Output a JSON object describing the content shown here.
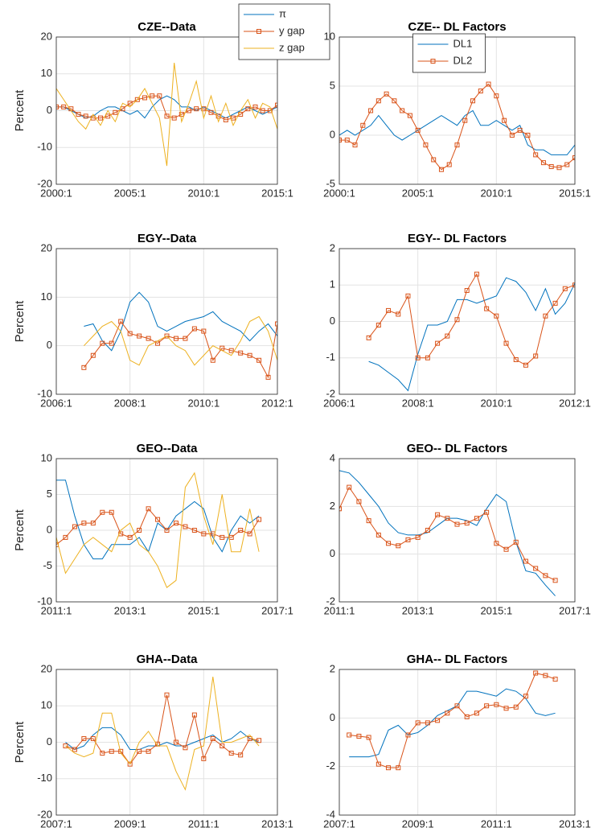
{
  "chart_data": [
    {
      "type": "line",
      "title": "CZE--Data",
      "ylabel": "Percent",
      "x": [
        2000,
        2000.5,
        2001,
        2001.5,
        2002,
        2002.5,
        2003,
        2003.5,
        2004,
        2004.5,
        2005,
        2005.5,
        2006,
        2006.5,
        2007,
        2007.5,
        2008,
        2008.5,
        2009,
        2009.5,
        2010,
        2010.5,
        2011,
        2011.5,
        2012,
        2012.5,
        2013,
        2013.5,
        2014,
        2014.5,
        2015
      ],
      "series": [
        {
          "name": "π",
          "color": "#0072bd",
          "values": [
            1,
            1,
            0,
            -1,
            -2,
            -1.5,
            0,
            1,
            1,
            0,
            -1,
            0,
            -2,
            1,
            3,
            4,
            3,
            1,
            1,
            0,
            1,
            0,
            -1,
            -2,
            -1,
            0,
            1,
            0,
            -1,
            0,
            1
          ]
        },
        {
          "name": "y gap",
          "color": "#d95319",
          "marker": "square",
          "values": [
            1,
            1,
            0.5,
            -1,
            -1.5,
            -2,
            -2,
            -1.5,
            -0.5,
            0.5,
            2,
            3,
            3.5,
            4,
            4,
            -1.5,
            -2,
            -1,
            0,
            0.5,
            0.5,
            -0.5,
            -1.5,
            -2.5,
            -2,
            -1,
            0.5,
            1,
            0,
            0,
            1.5
          ]
        },
        {
          "name": "z gap",
          "color": "#edb120",
          "values": [
            6,
            3,
            0,
            -3,
            -5,
            -1,
            -4,
            0,
            -3,
            2,
            1,
            3,
            6,
            2,
            -2,
            -15,
            13,
            -3,
            2,
            8,
            -2,
            4,
            -3,
            2,
            -4,
            0,
            3,
            -2,
            2,
            1,
            -5
          ]
        }
      ],
      "xlim": [
        2000,
        2015
      ],
      "xticks": [
        {
          "value": 2000,
          "label": "2000:1"
        },
        {
          "value": 2005,
          "label": "2005:1"
        },
        {
          "value": 2010,
          "label": "2010:1"
        },
        {
          "value": 2015,
          "label": "2015:1"
        }
      ],
      "ylim": [
        -20,
        20
      ],
      "yticks": [
        -20,
        -10,
        0,
        10,
        20
      ],
      "grid": true,
      "legend": "northeast"
    },
    {
      "type": "line",
      "title": "CZE-- DL Factors",
      "x": [
        2000,
        2000.5,
        2001,
        2001.5,
        2002,
        2002.5,
        2003,
        2003.5,
        2004,
        2004.5,
        2005,
        2005.5,
        2006,
        2006.5,
        2007,
        2007.5,
        2008,
        2008.5,
        2009,
        2009.5,
        2010,
        2010.5,
        2011,
        2011.5,
        2012,
        2012.5,
        2013,
        2013.5,
        2014,
        2014.5,
        2015
      ],
      "series": [
        {
          "name": "DL1",
          "color": "#0072bd",
          "values": [
            0,
            0.5,
            0,
            0.5,
            1,
            2,
            1,
            0,
            -0.5,
            0,
            0.5,
            1,
            1.5,
            2,
            1.5,
            1,
            2,
            2.5,
            1,
            1,
            1.5,
            1,
            0.5,
            1,
            -1,
            -1.5,
            -1.5,
            -2,
            -2,
            -2,
            -1
          ]
        },
        {
          "name": "DL2",
          "color": "#d95319",
          "marker": "square",
          "values": [
            -0.5,
            -0.5,
            -1,
            1,
            2.5,
            3.5,
            4.2,
            3.5,
            2.5,
            2,
            0.5,
            -1,
            -2.5,
            -3.5,
            -3,
            -1,
            1.5,
            3.5,
            4.5,
            5.2,
            4,
            1.5,
            0,
            0.5,
            0,
            -2,
            -2.8,
            -3.2,
            -3.3,
            -3,
            -2.3
          ]
        }
      ],
      "xlim": [
        2000,
        2015
      ],
      "xticks": [
        {
          "value": 2000,
          "label": "2000:1"
        },
        {
          "value": 2005,
          "label": "2005:1"
        },
        {
          "value": 2010,
          "label": "2010:1"
        },
        {
          "value": 2015,
          "label": "2015:1"
        }
      ],
      "ylim": [
        -5,
        10
      ],
      "yticks": [
        -5,
        0,
        5,
        10
      ],
      "grid": true,
      "legend": "north"
    },
    {
      "type": "line",
      "title": "EGY--Data",
      "ylabel": "Percent",
      "x": [
        2006.75,
        2007,
        2007.25,
        2007.5,
        2007.75,
        2008,
        2008.25,
        2008.5,
        2008.75,
        2009,
        2009.25,
        2009.5,
        2009.75,
        2010,
        2010.25,
        2010.5,
        2010.75,
        2011,
        2011.25,
        2011.5,
        2011.75,
        2012
      ],
      "series": [
        {
          "color": "#0072bd",
          "values": [
            4,
            4.5,
            1,
            -1,
            3,
            9,
            11,
            9,
            4,
            3,
            4,
            5,
            5.5,
            6,
            7,
            5,
            4,
            3,
            1,
            3,
            4.5,
            2
          ]
        },
        {
          "color": "#d95319",
          "marker": "square",
          "values": [
            -4.5,
            -2,
            0.5,
            0.5,
            5,
            2.5,
            2,
            1.5,
            0.5,
            2,
            1.5,
            1.5,
            3.5,
            3,
            -3,
            -0.5,
            -1,
            -1.5,
            -2,
            -3,
            -6.5,
            4.5
          ]
        },
        {
          "color": "#edb120",
          "values": [
            0,
            2,
            4,
            5,
            3,
            -3,
            -4,
            0,
            1,
            2,
            0,
            -1,
            -4,
            -2,
            0,
            -1,
            -2,
            1,
            5,
            6,
            3,
            -3
          ]
        }
      ],
      "xlim": [
        2006,
        2012
      ],
      "xticks": [
        {
          "value": 2006,
          "label": "2006:1"
        },
        {
          "value": 2008,
          "label": "2008:1"
        },
        {
          "value": 2010,
          "label": "2010:1"
        },
        {
          "value": 2012,
          "label": "2012:1"
        }
      ],
      "ylim": [
        -10,
        20
      ],
      "yticks": [
        -10,
        0,
        10,
        20
      ],
      "grid": true
    },
    {
      "type": "line",
      "title": "EGY-- DL Factors",
      "x": [
        2006.75,
        2007,
        2007.25,
        2007.5,
        2007.75,
        2008,
        2008.25,
        2008.5,
        2008.75,
        2009,
        2009.25,
        2009.5,
        2009.75,
        2010,
        2010.25,
        2010.5,
        2010.75,
        2011,
        2011.25,
        2011.5,
        2011.75,
        2012
      ],
      "series": [
        {
          "color": "#0072bd",
          "values": [
            -1.1,
            -1.2,
            -1.4,
            -1.6,
            -1.9,
            -0.9,
            -0.1,
            -0.1,
            0,
            0.6,
            0.6,
            0.5,
            0.6,
            0.7,
            1.2,
            1.1,
            0.8,
            0.3,
            0.9,
            0.2,
            0.5,
            1.05
          ]
        },
        {
          "color": "#d95319",
          "marker": "square",
          "values": [
            -0.45,
            -0.1,
            0.3,
            0.2,
            0.7,
            -1,
            -1,
            -0.6,
            -0.4,
            0.05,
            0.85,
            1.3,
            0.35,
            0.15,
            -0.6,
            -1.05,
            -1.2,
            -0.95,
            0.15,
            0.5,
            0.9,
            1.0
          ]
        }
      ],
      "xlim": [
        2006,
        2012
      ],
      "xticks": [
        {
          "value": 2006,
          "label": "2006:1"
        },
        {
          "value": 2008,
          "label": "2008:1"
        },
        {
          "value": 2010,
          "label": "2010:1"
        },
        {
          "value": 2012,
          "label": "2012:1"
        }
      ],
      "ylim": [
        -2,
        2
      ],
      "yticks": [
        -2,
        -1,
        0,
        1,
        2
      ],
      "grid": true
    },
    {
      "type": "line",
      "title": "GEO--Data",
      "ylabel": "Percent",
      "x": [
        2011,
        2011.25,
        2011.5,
        2011.75,
        2012,
        2012.25,
        2012.5,
        2012.75,
        2013,
        2013.25,
        2013.5,
        2013.75,
        2014,
        2014.25,
        2014.5,
        2014.75,
        2015,
        2015.25,
        2015.5,
        2015.75,
        2016,
        2016.25,
        2016.5
      ],
      "series": [
        {
          "color": "#0072bd",
          "values": [
            7,
            7,
            2,
            -2,
            -4,
            -4,
            -2,
            -2,
            -2,
            -1,
            -3,
            1,
            0,
            2,
            3,
            4,
            3,
            -1,
            -3,
            0,
            2,
            1,
            2
          ]
        },
        {
          "color": "#d95319",
          "marker": "square",
          "values": [
            -2,
            -1,
            0.5,
            1,
            1,
            2.5,
            2.5,
            -0.5,
            -1,
            0,
            3,
            1.5,
            0,
            1,
            0.5,
            0,
            -0.5,
            -0.5,
            -1,
            -1,
            0,
            -0.5,
            1.5
          ]
        },
        {
          "color": "#edb120",
          "values": [
            -1,
            -6,
            -4,
            -2,
            -1,
            -2,
            -3,
            0,
            1,
            -2,
            -3,
            -5,
            -8,
            -7,
            6,
            8,
            2,
            -2,
            5,
            -3,
            -3,
            3,
            -3
          ]
        }
      ],
      "xlim": [
        2011,
        2017
      ],
      "xticks": [
        {
          "value": 2011,
          "label": "2011:1"
        },
        {
          "value": 2013,
          "label": "2013:1"
        },
        {
          "value": 2015,
          "label": "2015:1"
        },
        {
          "value": 2017,
          "label": "2017:1"
        }
      ],
      "ylim": [
        -10,
        10
      ],
      "yticks": [
        -10,
        -5,
        0,
        5,
        10
      ],
      "grid": true
    },
    {
      "type": "line",
      "title": "GEO-- DL Factors",
      "x": [
        2011,
        2011.25,
        2011.5,
        2011.75,
        2012,
        2012.25,
        2012.5,
        2012.75,
        2013,
        2013.25,
        2013.5,
        2013.75,
        2014,
        2014.25,
        2014.5,
        2014.75,
        2015,
        2015.25,
        2015.5,
        2015.75,
        2016,
        2016.25,
        2016.5
      ],
      "series": [
        {
          "color": "#0072bd",
          "values": [
            3.5,
            3.4,
            3,
            2.5,
            2,
            1.3,
            0.9,
            0.8,
            0.8,
            0.9,
            1.2,
            1.5,
            1.5,
            1.4,
            1.2,
            1.9,
            2.5,
            2.2,
            0.5,
            -0.7,
            -0.8,
            -1.3,
            -1.75
          ]
        },
        {
          "color": "#d95319",
          "marker": "square",
          "values": [
            1.9,
            2.8,
            2.2,
            1.4,
            0.8,
            0.45,
            0.35,
            0.6,
            0.7,
            1.0,
            1.65,
            1.5,
            1.25,
            1.3,
            1.5,
            1.75,
            0.45,
            0.2,
            0.5,
            -0.3,
            -0.6,
            -0.9,
            -1.1
          ]
        }
      ],
      "xlim": [
        2011,
        2017
      ],
      "xticks": [
        {
          "value": 2011,
          "label": "2011:1"
        },
        {
          "value": 2013,
          "label": "2013:1"
        },
        {
          "value": 2015,
          "label": "2015:1"
        },
        {
          "value": 2017,
          "label": "2017:1"
        }
      ],
      "ylim": [
        -2,
        4
      ],
      "yticks": [
        -2,
        0,
        2,
        4
      ],
      "grid": true
    },
    {
      "type": "line",
      "title": "GHA--Data",
      "ylabel": "Percent",
      "x": [
        2007.25,
        2007.5,
        2007.75,
        2008,
        2008.25,
        2008.5,
        2008.75,
        2009,
        2009.25,
        2009.5,
        2009.75,
        2010,
        2010.25,
        2010.5,
        2010.75,
        2011,
        2011.25,
        2011.5,
        2011.75,
        2012,
        2012.25,
        2012.5
      ],
      "series": [
        {
          "color": "#0072bd",
          "values": [
            0,
            -2,
            -1,
            2,
            4,
            4,
            2,
            -2,
            -2,
            -1,
            -1,
            0,
            -1,
            -1,
            0,
            1,
            2,
            0,
            1,
            3,
            1,
            0
          ]
        },
        {
          "color": "#d95319",
          "marker": "square",
          "values": [
            -1,
            -2,
            1,
            1,
            -3,
            -2.5,
            -2.5,
            -6,
            -2.5,
            -2.5,
            -0.5,
            13,
            0,
            -1.5,
            7.5,
            -4.5,
            1,
            -1,
            -3,
            -3.5,
            1,
            0.5
          ]
        },
        {
          "color": "#edb120",
          "values": [
            -1,
            -3,
            -4,
            -3,
            8,
            8,
            -3,
            -6,
            0,
            3,
            -1,
            -1,
            -8,
            -13,
            -2,
            -1,
            18,
            0,
            0,
            1,
            2,
            -1
          ]
        }
      ],
      "xlim": [
        2007,
        2013
      ],
      "xticks": [
        {
          "value": 2007,
          "label": "2007:1"
        },
        {
          "value": 2009,
          "label": "2009:1"
        },
        {
          "value": 2011,
          "label": "2011:1"
        },
        {
          "value": 2013,
          "label": "2013:1"
        }
      ],
      "ylim": [
        -20,
        20
      ],
      "yticks": [
        -20,
        -10,
        0,
        10,
        20
      ],
      "grid": true
    },
    {
      "type": "line",
      "title": "GHA-- DL Factors",
      "x": [
        2007.25,
        2007.5,
        2007.75,
        2008,
        2008.25,
        2008.5,
        2008.75,
        2009,
        2009.25,
        2009.5,
        2009.75,
        2010,
        2010.25,
        2010.5,
        2010.75,
        2011,
        2011.25,
        2011.5,
        2011.75,
        2012,
        2012.25,
        2012.5
      ],
      "series": [
        {
          "color": "#0072bd",
          "values": [
            -1.6,
            -1.6,
            -1.6,
            -1.5,
            -0.5,
            -0.3,
            -0.7,
            -0.6,
            -0.3,
            0.1,
            0.3,
            0.5,
            1.1,
            1.1,
            1.0,
            0.9,
            1.2,
            1.1,
            0.8,
            0.2,
            0.1,
            0.2
          ]
        },
        {
          "color": "#d95319",
          "marker": "square",
          "values": [
            -0.7,
            -0.75,
            -0.8,
            -1.9,
            -2.05,
            -2.05,
            -0.7,
            -0.2,
            -0.2,
            -0.1,
            0.2,
            0.5,
            0.05,
            0.2,
            0.5,
            0.55,
            0.4,
            0.45,
            0.9,
            1.85,
            1.75,
            1.6
          ]
        }
      ],
      "xlim": [
        2007,
        2013
      ],
      "xticks": [
        {
          "value": 2007,
          "label": "2007:1"
        },
        {
          "value": 2009,
          "label": "2009:1"
        },
        {
          "value": 2011,
          "label": "2011:1"
        },
        {
          "value": 2013,
          "label": "2013:1"
        }
      ],
      "ylim": [
        -4,
        2
      ],
      "yticks": [
        -4,
        -2,
        0,
        2
      ],
      "grid": true
    }
  ]
}
